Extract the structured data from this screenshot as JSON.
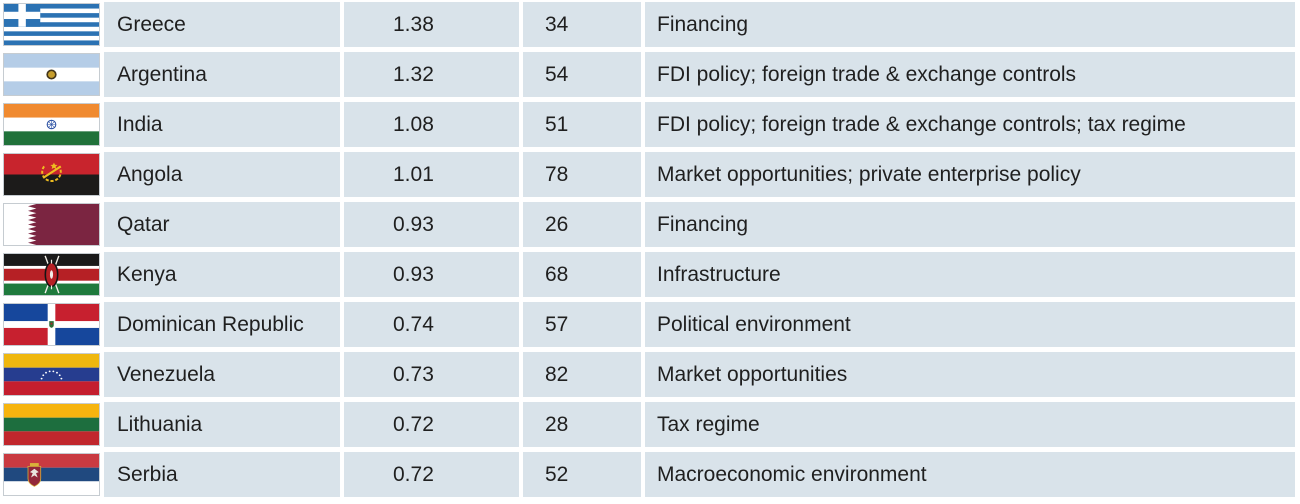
{
  "style": {
    "row_background": "#d9e3ea",
    "text_color": "#1f1f1f"
  },
  "table": {
    "rows": [
      {
        "flag": "greece",
        "country": "Greece",
        "value1": "1.38",
        "value2": "34",
        "description": "Financing"
      },
      {
        "flag": "argentina",
        "country": "Argentina",
        "value1": "1.32",
        "value2": "54",
        "description": "FDI policy; foreign trade & exchange controls"
      },
      {
        "flag": "india",
        "country": "India",
        "value1": "1.08",
        "value2": "51",
        "description": "FDI policy; foreign trade & exchange controls; tax regime"
      },
      {
        "flag": "angola",
        "country": "Angola",
        "value1": "1.01",
        "value2": "78",
        "description": "Market opportunities; private enterprise policy"
      },
      {
        "flag": "qatar",
        "country": "Qatar",
        "value1": "0.93",
        "value2": "26",
        "description": "Financing"
      },
      {
        "flag": "kenya",
        "country": "Kenya",
        "value1": "0.93",
        "value2": "68",
        "description": "Infrastructure"
      },
      {
        "flag": "dominican-republic",
        "country": "Dominican Republic",
        "value1": "0.74",
        "value2": "57",
        "description": "Political environment"
      },
      {
        "flag": "venezuela",
        "country": "Venezuela",
        "value1": "0.73",
        "value2": "82",
        "description": "Market opportunities"
      },
      {
        "flag": "lithuania",
        "country": "Lithuania",
        "value1": "0.72",
        "value2": "28",
        "description": "Tax regime"
      },
      {
        "flag": "serbia",
        "country": "Serbia",
        "value1": "0.72",
        "value2": "52",
        "description": "Macroeconomic environment"
      }
    ]
  },
  "chart_data": {
    "type": "table",
    "columns": [
      "country",
      "value_1",
      "value_2",
      "notes"
    ],
    "rows": [
      [
        "Greece",
        1.38,
        34,
        "Financing"
      ],
      [
        "Argentina",
        1.32,
        54,
        "FDI policy; foreign trade & exchange controls"
      ],
      [
        "India",
        1.08,
        51,
        "FDI policy; foreign trade & exchange controls; tax regime"
      ],
      [
        "Angola",
        1.01,
        78,
        "Market opportunities; private enterprise policy"
      ],
      [
        "Qatar",
        0.93,
        26,
        "Financing"
      ],
      [
        "Kenya",
        0.93,
        68,
        "Infrastructure"
      ],
      [
        "Dominican Republic",
        0.74,
        57,
        "Political environment"
      ],
      [
        "Venezuela",
        0.73,
        82,
        "Market opportunities"
      ],
      [
        "Lithuania",
        0.72,
        28,
        "Tax regime"
      ],
      [
        "Serbia",
        0.72,
        52,
        "Macroeconomic environment"
      ]
    ],
    "header_visible": false,
    "legend": "none"
  }
}
